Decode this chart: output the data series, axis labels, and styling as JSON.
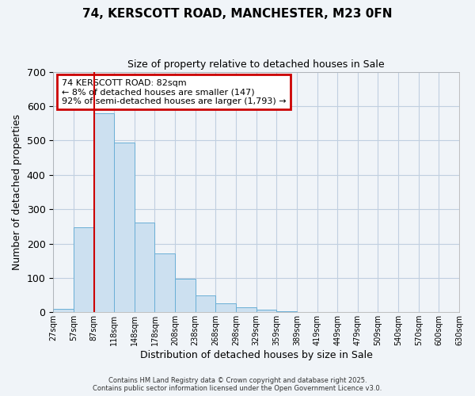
{
  "title_line1": "74, KERSCOTT ROAD, MANCHESTER, M23 0FN",
  "title_line2": "Size of property relative to detached houses in Sale",
  "xlabel": "Distribution of detached houses by size in Sale",
  "ylabel": "Number of detached properties",
  "bin_labels": [
    "27sqm",
    "57sqm",
    "87sqm",
    "118sqm",
    "148sqm",
    "178sqm",
    "208sqm",
    "238sqm",
    "268sqm",
    "298sqm",
    "329sqm",
    "359sqm",
    "389sqm",
    "419sqm",
    "449sqm",
    "479sqm",
    "509sqm",
    "540sqm",
    "570sqm",
    "600sqm",
    "630sqm"
  ],
  "bar_values": [
    10,
    248,
    578,
    495,
    260,
    172,
    97,
    48,
    25,
    15,
    8,
    2,
    1,
    0,
    0,
    0,
    0,
    0,
    0,
    0,
    0
  ],
  "bar_color": "#cce0f0",
  "bar_edge_color": "#6aafd6",
  "ylim": [
    0,
    700
  ],
  "yticks": [
    0,
    100,
    200,
    300,
    400,
    500,
    600,
    700
  ],
  "vline_bin_index": 2,
  "annotation_text": "74 KERSCOTT ROAD: 82sqm\n← 8% of detached houses are smaller (147)\n92% of semi-detached houses are larger (1,793) →",
  "annotation_box_color": "#ffffff",
  "annotation_box_edge": "#cc0000",
  "vline_color": "#cc0000",
  "footer_line1": "Contains HM Land Registry data © Crown copyright and database right 2025.",
  "footer_line2": "Contains public sector information licensed under the Open Government Licence v3.0.",
  "background_color": "#f0f4f8",
  "grid_color": "#c0cfe0"
}
